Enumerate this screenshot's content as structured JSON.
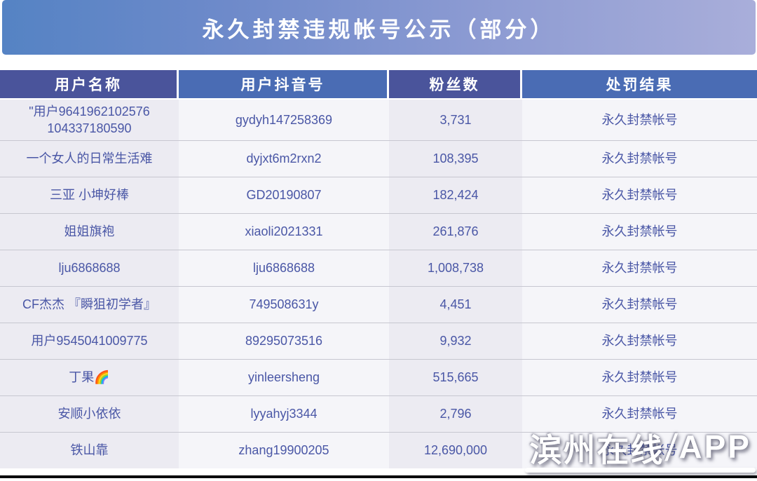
{
  "banner": {
    "title": "永久封禁违规帐号公示（部分）"
  },
  "table": {
    "headers": [
      "用户名称",
      "用户抖音号",
      "粉丝数",
      "处罚结果"
    ],
    "rows": [
      {
        "name": "\"用户9641962102576\n104337180590",
        "douyin_id": "gydyh147258369",
        "followers": "3,731",
        "result": "永久封禁帐号"
      },
      {
        "name": "一个女人的日常生活难",
        "douyin_id": "dyjxt6m2rxn2",
        "followers": "108,395",
        "result": "永久封禁帐号"
      },
      {
        "name": "三亚 小坤好棒",
        "douyin_id": "GD20190807",
        "followers": "182,424",
        "result": "永久封禁帐号"
      },
      {
        "name": "姐姐旗袍",
        "douyin_id": "xiaoli2021331",
        "followers": "261,876",
        "result": "永久封禁帐号"
      },
      {
        "name": "lju6868688",
        "douyin_id": "lju6868688",
        "followers": "1,008,738",
        "result": "永久封禁帐号"
      },
      {
        "name": "CF杰杰 『瞬狙初学者』",
        "douyin_id": "749508631y",
        "followers": "4,451",
        "result": "永久封禁帐号"
      },
      {
        "name": "用户9545041009775",
        "douyin_id": "89295073516",
        "followers": "9,932",
        "result": "永久封禁帐号"
      },
      {
        "name": "丁果🌈",
        "douyin_id": "yinleersheng",
        "followers": "515,665",
        "result": "永久封禁帐号"
      },
      {
        "name": "安顺小依依",
        "douyin_id": "lyyahyj3344",
        "followers": "2,796",
        "result": "永久封禁帐号"
      },
      {
        "name": "铁山靠",
        "douyin_id": "zhang19900205",
        "followers": "12,690,000",
        "result": "永久封禁帐号"
      }
    ]
  },
  "watermark": {
    "site": "滨州在线",
    "slash": "/",
    "app": "APP"
  },
  "colors": {
    "banner_gradient_left": "#5583c4",
    "banner_gradient_right": "#a9aeda",
    "header_indigo": "#4a549b",
    "header_blue": "#4a6cb4",
    "cell_bg_odd": "#ecebf2",
    "cell_bg_even": "#f5f5f9",
    "cell_text": "#4a57a6",
    "row_divider": "#c7c7d0"
  }
}
